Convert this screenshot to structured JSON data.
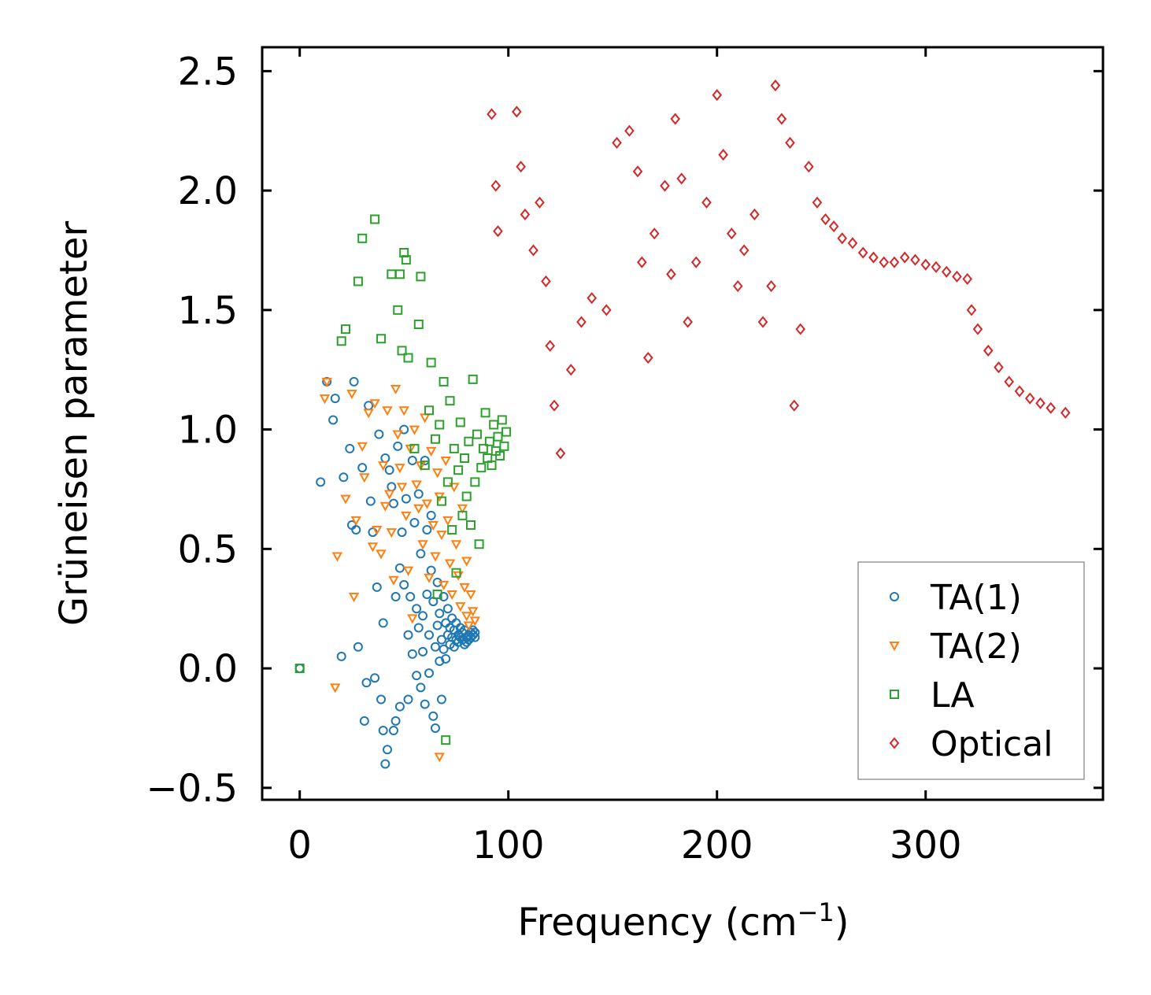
{
  "chart_data": {
    "type": "scatter",
    "title": "",
    "xlabel": "Frequency (cm",
    "xlabel_sup": "−1",
    "xlabel_end": ")",
    "ylabel": "Grüneisen parameter",
    "xlim": [
      -18,
      385
    ],
    "ylim": [
      -0.55,
      2.6
    ],
    "xticks": [
      0,
      100,
      200,
      300
    ],
    "xtick_labels": [
      "0",
      "100",
      "200",
      "300"
    ],
    "yticks": [
      -0.5,
      0.0,
      0.5,
      1.0,
      1.5,
      2.0,
      2.5
    ],
    "ytick_labels": [
      "−0.5",
      "0.0",
      "0.5",
      "1.0",
      "1.5",
      "2.0",
      "2.5"
    ],
    "legend_position": "lower-right",
    "series": [
      {
        "name": "TA(1)",
        "marker": "circle",
        "color": "#1f77b4",
        "points": [
          [
            0,
            0.0
          ],
          [
            10,
            0.78
          ],
          [
            13,
            1.2
          ],
          [
            16,
            1.04
          ],
          [
            17,
            1.13
          ],
          [
            20,
            0.05
          ],
          [
            21,
            0.8
          ],
          [
            24,
            0.92
          ],
          [
            25,
            0.6
          ],
          [
            26,
            1.2
          ],
          [
            27,
            0.58
          ],
          [
            28,
            0.09
          ],
          [
            30,
            0.84
          ],
          [
            31,
            -0.22
          ],
          [
            32,
            -0.06
          ],
          [
            33,
            1.1
          ],
          [
            34,
            0.7
          ],
          [
            35,
            0.57
          ],
          [
            36,
            -0.04
          ],
          [
            37,
            0.34
          ],
          [
            38,
            0.98
          ],
          [
            39,
            -0.13
          ],
          [
            40,
            -0.26
          ],
          [
            40,
            0.19
          ],
          [
            41,
            -0.4
          ],
          [
            41,
            0.88
          ],
          [
            42,
            -0.34
          ],
          [
            43,
            0.83
          ],
          [
            44,
            0.76
          ],
          [
            45,
            0.69
          ],
          [
            45,
            -0.26
          ],
          [
            46,
            -0.22
          ],
          [
            46,
            0.3
          ],
          [
            47,
            0.93
          ],
          [
            48,
            -0.16
          ],
          [
            48,
            0.42
          ],
          [
            49,
            0.57
          ],
          [
            50,
            0.35
          ],
          [
            50,
            1.0
          ],
          [
            51,
            0.71
          ],
          [
            52,
            -0.13
          ],
          [
            52,
            0.14
          ],
          [
            53,
            0.3
          ],
          [
            54,
            0.06
          ],
          [
            54,
            0.87
          ],
          [
            55,
            0.61
          ],
          [
            56,
            0.25
          ],
          [
            56,
            -0.03
          ],
          [
            57,
            0.17
          ],
          [
            57,
            0.73
          ],
          [
            58,
            0.48
          ],
          [
            58,
            -0.08
          ],
          [
            59,
            0.22
          ],
          [
            59,
            0.07
          ],
          [
            60,
            0.87
          ],
          [
            60,
            -0.15
          ],
          [
            61,
            0.58
          ],
          [
            61,
            0.31
          ],
          [
            62,
            0.14
          ],
          [
            62,
            -0.02
          ],
          [
            63,
            0.64
          ],
          [
            63,
            0.41
          ],
          [
            64,
            -0.2
          ],
          [
            64,
            0.28
          ],
          [
            65,
            0.09
          ],
          [
            65,
            -0.25
          ],
          [
            66,
            0.18
          ],
          [
            66,
            0.36
          ],
          [
            67,
            0.03
          ],
          [
            67,
            0.23
          ],
          [
            68,
            0.12
          ],
          [
            68,
            -0.13
          ],
          [
            69,
            0.3
          ],
          [
            69,
            0.08
          ],
          [
            70,
            0.19
          ],
          [
            70,
            0.04
          ],
          [
            71,
            0.14
          ],
          [
            71,
            0.25
          ],
          [
            72,
            0.1
          ],
          [
            72,
            0.17
          ],
          [
            73,
            0.21
          ],
          [
            73,
            0.13
          ],
          [
            74,
            0.16
          ],
          [
            74,
            0.09
          ],
          [
            75,
            0.12
          ],
          [
            75,
            0.19
          ],
          [
            76,
            0.14
          ],
          [
            76,
            0.11
          ],
          [
            77,
            0.17
          ],
          [
            77,
            0.13
          ],
          [
            78,
            0.12
          ],
          [
            78,
            0.15
          ],
          [
            79,
            0.1
          ],
          [
            79,
            0.16
          ],
          [
            80,
            0.13
          ],
          [
            80,
            0.11
          ],
          [
            81,
            0.14
          ],
          [
            81,
            0.12
          ],
          [
            82,
            0.15
          ],
          [
            82,
            0.13
          ],
          [
            83,
            0.14
          ],
          [
            83,
            0.16
          ],
          [
            84,
            0.15
          ],
          [
            84,
            0.13
          ]
        ]
      },
      {
        "name": "TA(2)",
        "marker": "triangle-down",
        "color": "#ff7f0e",
        "points": [
          [
            12,
            1.13
          ],
          [
            13,
            1.2
          ],
          [
            17,
            -0.08
          ],
          [
            18,
            0.47
          ],
          [
            22,
            0.71
          ],
          [
            25,
            1.15
          ],
          [
            26,
            0.3
          ],
          [
            27,
            0.62
          ],
          [
            30,
            0.93
          ],
          [
            31,
            0.8
          ],
          [
            33,
            1.07
          ],
          [
            35,
            0.51
          ],
          [
            36,
            1.11
          ],
          [
            37,
            0.58
          ],
          [
            39,
            0.48
          ],
          [
            40,
            0.85
          ],
          [
            41,
            0.68
          ],
          [
            42,
            1.08
          ],
          [
            43,
            0.73
          ],
          [
            44,
            0.57
          ],
          [
            45,
            0.37
          ],
          [
            46,
            1.17
          ],
          [
            47,
            0.98
          ],
          [
            48,
            0.84
          ],
          [
            49,
            0.76
          ],
          [
            50,
            1.08
          ],
          [
            51,
            0.64
          ],
          [
            52,
            0.41
          ],
          [
            53,
            0.92
          ],
          [
            54,
            0.21
          ],
          [
            55,
            1.0
          ],
          [
            56,
            0.77
          ],
          [
            57,
            0.67
          ],
          [
            58,
            0.85
          ],
          [
            59,
            0.52
          ],
          [
            60,
            1.05
          ],
          [
            61,
            0.69
          ],
          [
            62,
            0.38
          ],
          [
            63,
            0.91
          ],
          [
            64,
            0.6
          ],
          [
            65,
            0.47
          ],
          [
            66,
            0.82
          ],
          [
            67,
            -0.37
          ],
          [
            67,
            0.72
          ],
          [
            68,
            0.56
          ],
          [
            69,
            0.35
          ],
          [
            70,
            0.87
          ],
          [
            71,
            0.62
          ],
          [
            72,
            0.44
          ],
          [
            73,
            0.31
          ],
          [
            74,
            0.76
          ],
          [
            75,
            0.52
          ],
          [
            76,
            0.39
          ],
          [
            77,
            0.26
          ],
          [
            78,
            0.67
          ],
          [
            79,
            0.34
          ],
          [
            80,
            0.45
          ],
          [
            80,
            0.22
          ],
          [
            81,
            0.18
          ],
          [
            82,
            0.31
          ],
          [
            83,
            0.24
          ],
          [
            84,
            0.2
          ]
        ]
      },
      {
        "name": "LA",
        "marker": "square",
        "color": "#2ca02c",
        "points": [
          [
            0,
            0.0
          ],
          [
            20,
            1.37
          ],
          [
            22,
            1.42
          ],
          [
            28,
            1.62
          ],
          [
            30,
            1.8
          ],
          [
            36,
            1.88
          ],
          [
            39,
            1.38
          ],
          [
            44,
            1.65
          ],
          [
            47,
            1.5
          ],
          [
            48,
            1.65
          ],
          [
            49,
            1.33
          ],
          [
            50,
            1.74
          ],
          [
            51,
            1.71
          ],
          [
            52,
            1.3
          ],
          [
            55,
            0.92
          ],
          [
            57,
            1.44
          ],
          [
            58,
            1.64
          ],
          [
            60,
            0.85
          ],
          [
            62,
            1.08
          ],
          [
            63,
            1.28
          ],
          [
            65,
            0.96
          ],
          [
            66,
            0.31
          ],
          [
            67,
            1.02
          ],
          [
            68,
            0.7
          ],
          [
            69,
            1.2
          ],
          [
            70,
            -0.3
          ],
          [
            71,
            0.78
          ],
          [
            72,
            1.12
          ],
          [
            73,
            0.58
          ],
          [
            74,
            0.92
          ],
          [
            75,
            0.4
          ],
          [
            76,
            0.83
          ],
          [
            77,
            1.03
          ],
          [
            78,
            0.64
          ],
          [
            79,
            0.88
          ],
          [
            80,
            0.72
          ],
          [
            81,
            0.95
          ],
          [
            82,
            0.6
          ],
          [
            83,
            1.21
          ],
          [
            84,
            0.78
          ],
          [
            85,
            0.98
          ],
          [
            86,
            0.52
          ],
          [
            87,
            0.84
          ],
          [
            88,
            0.92
          ],
          [
            89,
            1.07
          ],
          [
            90,
            0.88
          ],
          [
            91,
            0.95
          ],
          [
            92,
            0.85
          ],
          [
            93,
            1.02
          ],
          [
            94,
            0.91
          ],
          [
            95,
            0.97
          ],
          [
            96,
            0.89
          ],
          [
            97,
            1.04
          ],
          [
            98,
            0.93
          ],
          [
            99,
            0.99
          ]
        ]
      },
      {
        "name": "Optical",
        "marker": "diamond",
        "color": "#d62728",
        "points": [
          [
            92,
            2.32
          ],
          [
            94,
            2.02
          ],
          [
            95,
            1.83
          ],
          [
            104,
            2.33
          ],
          [
            106,
            2.1
          ],
          [
            108,
            1.9
          ],
          [
            112,
            1.75
          ],
          [
            115,
            1.95
          ],
          [
            118,
            1.62
          ],
          [
            120,
            1.35
          ],
          [
            122,
            1.1
          ],
          [
            125,
            0.9
          ],
          [
            130,
            1.25
          ],
          [
            135,
            1.45
          ],
          [
            140,
            1.55
          ],
          [
            147,
            1.5
          ],
          [
            152,
            2.2
          ],
          [
            158,
            2.25
          ],
          [
            162,
            2.08
          ],
          [
            164,
            1.7
          ],
          [
            167,
            1.3
          ],
          [
            170,
            1.82
          ],
          [
            175,
            2.02
          ],
          [
            178,
            1.65
          ],
          [
            180,
            2.3
          ],
          [
            183,
            2.05
          ],
          [
            186,
            1.45
          ],
          [
            190,
            1.7
          ],
          [
            195,
            1.95
          ],
          [
            200,
            2.4
          ],
          [
            203,
            2.15
          ],
          [
            207,
            1.82
          ],
          [
            210,
            1.6
          ],
          [
            213,
            1.75
          ],
          [
            218,
            1.9
          ],
          [
            222,
            1.45
          ],
          [
            226,
            1.6
          ],
          [
            228,
            2.44
          ],
          [
            231,
            2.3
          ],
          [
            235,
            2.2
          ],
          [
            237,
            1.1
          ],
          [
            240,
            1.42
          ],
          [
            244,
            2.1
          ],
          [
            248,
            1.95
          ],
          [
            252,
            1.88
          ],
          [
            256,
            1.85
          ],
          [
            260,
            1.8
          ],
          [
            265,
            1.78
          ],
          [
            270,
            1.74
          ],
          [
            275,
            1.72
          ],
          [
            280,
            1.7
          ],
          [
            285,
            1.7
          ],
          [
            290,
            1.72
          ],
          [
            295,
            1.71
          ],
          [
            300,
            1.69
          ],
          [
            305,
            1.68
          ],
          [
            310,
            1.66
          ],
          [
            315,
            1.64
          ],
          [
            320,
            1.63
          ],
          [
            322,
            1.5
          ],
          [
            325,
            1.42
          ],
          [
            330,
            1.33
          ],
          [
            335,
            1.26
          ],
          [
            340,
            1.2
          ],
          [
            345,
            1.16
          ],
          [
            350,
            1.13
          ],
          [
            355,
            1.11
          ],
          [
            360,
            1.09
          ],
          [
            367,
            1.07
          ]
        ]
      }
    ]
  }
}
